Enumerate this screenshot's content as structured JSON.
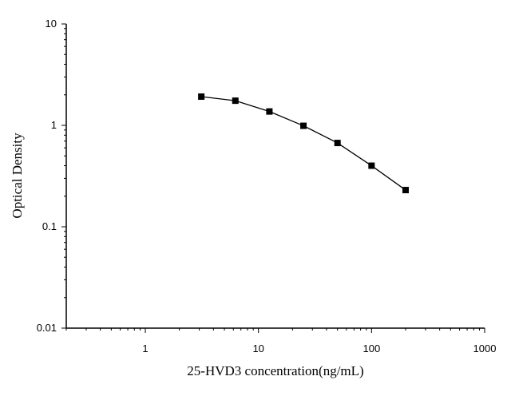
{
  "chart_data": {
    "type": "line",
    "title": "",
    "xlabel": "25-HVD3 concentration(ng/mL)",
    "ylabel": "Optical Density",
    "x_scale": "log",
    "y_scale": "log",
    "xlim": [
      0.2,
      1000
    ],
    "ylim": [
      0.01,
      10
    ],
    "x_ticks": [
      "1",
      "10",
      "100",
      "1000"
    ],
    "y_ticks": [
      "0.01",
      "0.1",
      "1",
      "10"
    ],
    "grid": false,
    "legend": "none",
    "marker": "square",
    "color": "#000000",
    "series": [
      {
        "x": [
          3.125,
          6.25,
          12.5,
          25,
          50,
          100,
          200
        ],
        "y": [
          1.92,
          1.75,
          1.37,
          0.99,
          0.67,
          0.4,
          0.23
        ]
      }
    ]
  }
}
